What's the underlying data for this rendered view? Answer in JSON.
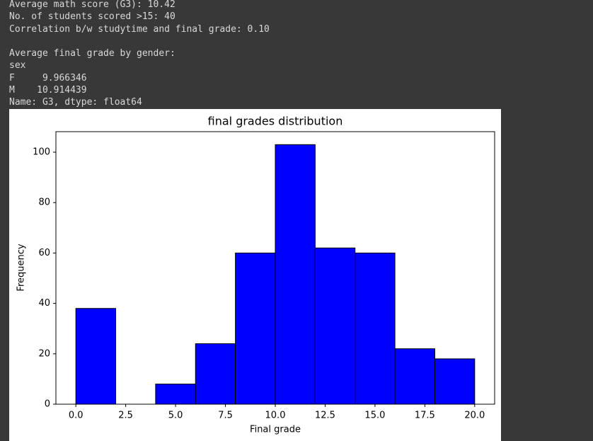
{
  "output_lines": {
    "summary": [
      "Average math score (G3): 10.42",
      "No. of students scored >15: 40",
      "Correlation b/w studytime and final grade: 0.10"
    ],
    "gender": [
      "Average final grade by gender:",
      "sex",
      "F     9.966346",
      "M    10.914439",
      "Name: G3, dtype: float64"
    ]
  },
  "chart_data": {
    "type": "histogram",
    "title": "final grades distribution",
    "x_label": "Final grade",
    "y_label": "Frequency",
    "bins": [
      0,
      2,
      4,
      6,
      8,
      10,
      12,
      14,
      16,
      18,
      20
    ],
    "values": [
      38,
      0,
      8,
      24,
      60,
      103,
      62,
      60,
      22,
      18
    ],
    "color": "#0000ff",
    "edgecolor": "#000000",
    "xlim": [
      -1,
      21
    ],
    "xticks": [
      {
        "value": 0,
        "label": "0.0"
      },
      {
        "value": 2.5,
        "label": "2.5"
      },
      {
        "value": 5,
        "label": "5.0"
      },
      {
        "value": 7.5,
        "label": "7.5"
      },
      {
        "value": 10,
        "label": "10.0"
      },
      {
        "value": 12.5,
        "label": "12.5"
      },
      {
        "value": 15,
        "label": "15.0"
      },
      {
        "value": 17.5,
        "label": "17.5"
      },
      {
        "value": 20,
        "label": "20.0"
      }
    ],
    "ylim": [
      0,
      108.15
    ],
    "yticks": [
      0,
      20,
      40,
      60,
      80,
      100
    ],
    "grid": false
  }
}
